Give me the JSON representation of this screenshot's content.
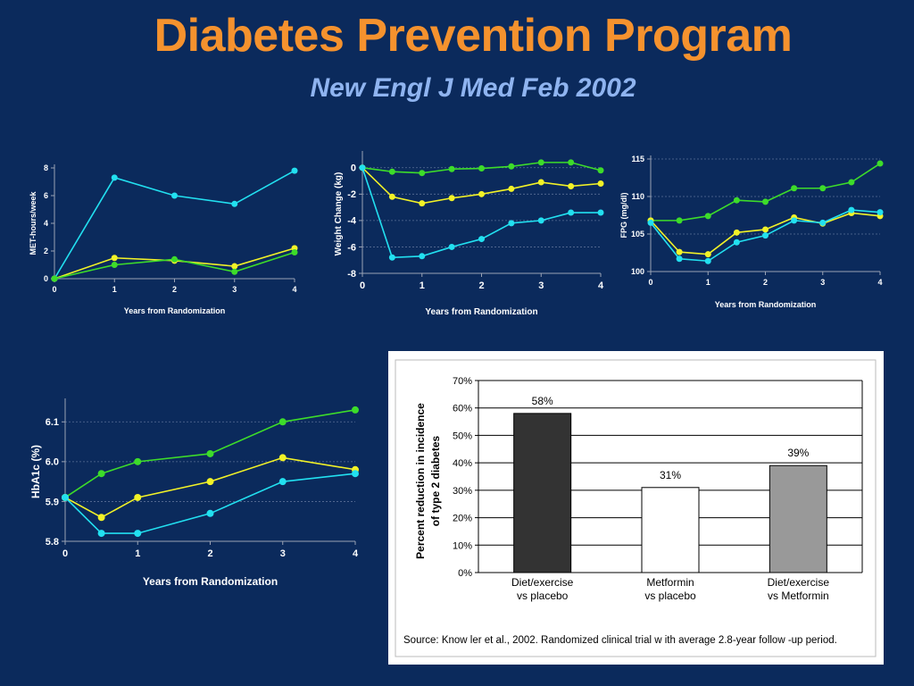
{
  "slide": {
    "title": "Diabetes Prevention Program",
    "subtitle": "New Engl J Med Feb 2002"
  },
  "colors": {
    "background": "#0b2a5c",
    "title": "#f5922e",
    "subtitle": "#8fb4f0",
    "series_cyan": "#22e0f0",
    "series_yellow": "#f2f227",
    "series_green": "#3ddc2a"
  },
  "chart_data": [
    {
      "type": "line",
      "id": "met",
      "xlabel": "Years from Randomization",
      "ylabel": "MET-hours/week",
      "xlim": [
        0,
        4
      ],
      "ylim": [
        0,
        8
      ],
      "xticks": [
        0,
        1,
        2,
        3,
        4
      ],
      "yticks": [
        0,
        2,
        4,
        6,
        8
      ],
      "grid": false,
      "series": [
        {
          "color": "#22e0f0",
          "points": [
            [
              0,
              0
            ],
            [
              1,
              7.3
            ],
            [
              2,
              6.0
            ],
            [
              3,
              5.4
            ],
            [
              4,
              7.8
            ]
          ]
        },
        {
          "color": "#f2f227",
          "points": [
            [
              0,
              0
            ],
            [
              1,
              1.5
            ],
            [
              2,
              1.3
            ],
            [
              3,
              0.9
            ],
            [
              4,
              2.2
            ]
          ]
        },
        {
          "color": "#3ddc2a",
          "points": [
            [
              0,
              0
            ],
            [
              1,
              1.0
            ],
            [
              2,
              1.4
            ],
            [
              3,
              0.5
            ],
            [
              4,
              1.9
            ]
          ]
        }
      ]
    },
    {
      "type": "line",
      "id": "weight",
      "xlabel": "Years from Randomization",
      "ylabel": "Weight Change (kg)",
      "xlim": [
        0,
        4
      ],
      "ylim": [
        -8,
        1
      ],
      "xticks": [
        0,
        1,
        2,
        3,
        4
      ],
      "yticks": [
        0,
        -2,
        -4,
        -6,
        -8
      ],
      "grid": true,
      "series": [
        {
          "color": "#3ddc2a",
          "points": [
            [
              0,
              0
            ],
            [
              0.5,
              -0.3
            ],
            [
              1,
              -0.4
            ],
            [
              1.5,
              -0.1
            ],
            [
              2,
              -0.05
            ],
            [
              2.5,
              0.1
            ],
            [
              3,
              0.4
            ],
            [
              3.5,
              0.4
            ],
            [
              4,
              -0.2
            ]
          ]
        },
        {
          "color": "#f2f227",
          "points": [
            [
              0,
              0
            ],
            [
              0.5,
              -2.2
            ],
            [
              1,
              -2.7
            ],
            [
              1.5,
              -2.3
            ],
            [
              2,
              -2.0
            ],
            [
              2.5,
              -1.6
            ],
            [
              3,
              -1.1
            ],
            [
              3.5,
              -1.4
            ],
            [
              4,
              -1.2
            ]
          ]
        },
        {
          "color": "#22e0f0",
          "points": [
            [
              0,
              0
            ],
            [
              0.5,
              -6.8
            ],
            [
              1,
              -6.7
            ],
            [
              1.5,
              -6.0
            ],
            [
              2,
              -5.4
            ],
            [
              2.5,
              -4.2
            ],
            [
              3,
              -4.0
            ],
            [
              3.5,
              -3.4
            ],
            [
              4,
              -3.4
            ]
          ]
        }
      ]
    },
    {
      "type": "line",
      "id": "fpg",
      "xlabel": "Years from Randomization",
      "ylabel": "FPG (mg/dl)",
      "xlim": [
        0,
        4
      ],
      "ylim": [
        100,
        115
      ],
      "xticks": [
        0,
        1,
        2,
        3,
        4
      ],
      "yticks": [
        100,
        105,
        110,
        115
      ],
      "grid": true,
      "series": [
        {
          "color": "#3ddc2a",
          "points": [
            [
              0,
              106.8
            ],
            [
              0.5,
              106.8
            ],
            [
              1,
              107.4
            ],
            [
              1.5,
              109.5
            ],
            [
              2,
              109.3
            ],
            [
              2.5,
              111.1
            ],
            [
              3,
              111.1
            ],
            [
              3.5,
              111.9
            ],
            [
              4,
              114.4
            ]
          ]
        },
        {
          "color": "#f2f227",
          "points": [
            [
              0,
              106.8
            ],
            [
              0.5,
              102.6
            ],
            [
              1,
              102.3
            ],
            [
              1.5,
              105.2
            ],
            [
              2,
              105.6
            ],
            [
              2.5,
              107.2
            ],
            [
              3,
              106.4
            ],
            [
              3.5,
              107.8
            ],
            [
              4,
              107.4
            ]
          ]
        },
        {
          "color": "#22e0f0",
          "points": [
            [
              0,
              106.5
            ],
            [
              0.5,
              101.7
            ],
            [
              1,
              101.4
            ],
            [
              1.5,
              103.9
            ],
            [
              2,
              104.8
            ],
            [
              2.5,
              106.8
            ],
            [
              3,
              106.5
            ],
            [
              3.5,
              108.2
            ],
            [
              4,
              107.9
            ]
          ]
        }
      ]
    },
    {
      "type": "line",
      "id": "hba1c",
      "xlabel": "Years from Randomization",
      "ylabel": "HbA1c (%)",
      "xlim": [
        0,
        4
      ],
      "ylim": [
        5.8,
        6.15
      ],
      "xticks": [
        0,
        1,
        2,
        3,
        4
      ],
      "yticks": [
        "5.8",
        "5.9",
        "6.0",
        "6.1"
      ],
      "grid": true,
      "series": [
        {
          "color": "#3ddc2a",
          "points": [
            [
              0,
              5.91
            ],
            [
              0.5,
              5.97
            ],
            [
              1,
              6.0
            ],
            [
              2,
              6.02
            ],
            [
              3,
              6.1
            ],
            [
              4,
              6.13
            ]
          ]
        },
        {
          "color": "#f2f227",
          "points": [
            [
              0,
              5.91
            ],
            [
              0.5,
              5.86
            ],
            [
              1,
              5.91
            ],
            [
              2,
              5.95
            ],
            [
              3,
              6.01
            ],
            [
              4,
              5.98
            ]
          ]
        },
        {
          "color": "#22e0f0",
          "points": [
            [
              0,
              5.91
            ],
            [
              0.5,
              5.82
            ],
            [
              1,
              5.82
            ],
            [
              2,
              5.87
            ],
            [
              3,
              5.95
            ],
            [
              4,
              5.97
            ]
          ]
        }
      ]
    },
    {
      "type": "bar",
      "id": "reduction",
      "ylabel_lines": [
        "Percent reduction in incidence",
        "of type 2 diabetes"
      ],
      "ylim": [
        0,
        70
      ],
      "yticks": [
        "0%",
        "10%",
        "20%",
        "30%",
        "40%",
        "50%",
        "60%",
        "70%"
      ],
      "grid": true,
      "categories": [
        {
          "line1": "Diet/exercise",
          "line2": "vs placebo"
        },
        {
          "line1": "Metformin",
          "line2": "vs placebo"
        },
        {
          "line1": "Diet/exercise",
          "line2": "vs Metformin"
        }
      ],
      "values": [
        58,
        31,
        39
      ],
      "data_labels": [
        "58%",
        "31%",
        "39%"
      ],
      "bar_colors": [
        "#333333",
        "#ffffff",
        "#999999"
      ],
      "source": "Source:  Know ler et al., 2002.  Randomized clinical trial w ith average 2.8-year follow -up period."
    }
  ]
}
